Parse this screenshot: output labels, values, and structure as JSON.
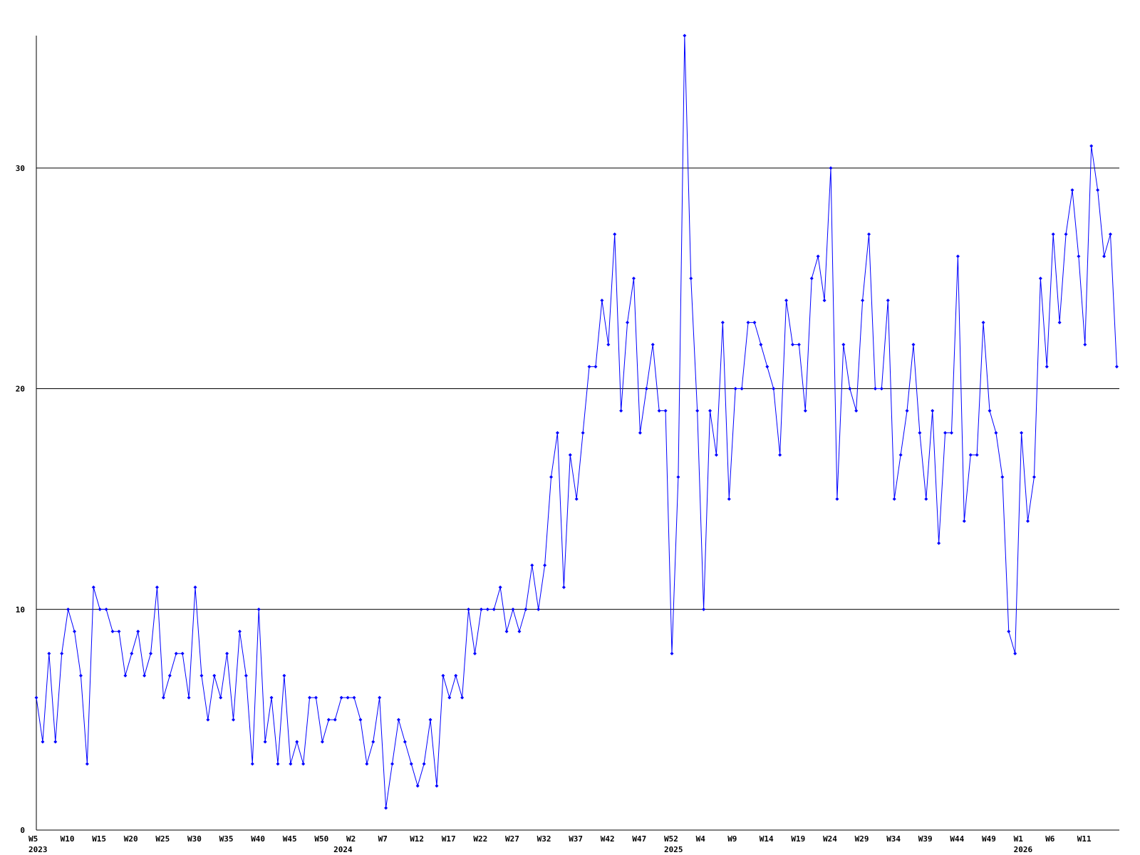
{
  "chart_data": {
    "type": "line",
    "categories": [
      "W5",
      null,
      null,
      null,
      null,
      "W10",
      null,
      null,
      null,
      null,
      "W15",
      null,
      null,
      null,
      null,
      "W20",
      null,
      null,
      null,
      null,
      "W25",
      null,
      null,
      null,
      null,
      "W30",
      null,
      null,
      null,
      null,
      "W35",
      null,
      null,
      null,
      null,
      "W40",
      null,
      null,
      null,
      null,
      "W45",
      null,
      null,
      null,
      null,
      "W50",
      null,
      null,
      null,
      null,
      "W2",
      null,
      null,
      null,
      null,
      "W7",
      null,
      null,
      null,
      null,
      "W12",
      null,
      null,
      null,
      null,
      "W17",
      null,
      null,
      null,
      null,
      "W22",
      null,
      null,
      null,
      null,
      "W27",
      null,
      null,
      null,
      null,
      "W32",
      null,
      null,
      null,
      null,
      "W37",
      null,
      null,
      null,
      null,
      "W42",
      null,
      null,
      null,
      null,
      "W47",
      null,
      null,
      null,
      null,
      "W52",
      null,
      null,
      null,
      null,
      "W4",
      null,
      null,
      null,
      null,
      "W9",
      null,
      null,
      null,
      null,
      "W14",
      null,
      null,
      null,
      null,
      "W19",
      null,
      null,
      null,
      null,
      "W24",
      null,
      null,
      null,
      null,
      "W29",
      null,
      null,
      null,
      null,
      "W34",
      null,
      null,
      null,
      null,
      "W39",
      null,
      null,
      null,
      null,
      "W44",
      null,
      null,
      null,
      null,
      "W49",
      null,
      null,
      null,
      null,
      "W1",
      null,
      null,
      null,
      null,
      "W6",
      null,
      null,
      null,
      null,
      "W11",
      null,
      null,
      null,
      null,
      null
    ],
    "years": [
      "2023",
      null,
      null,
      null,
      null,
      null,
      null,
      null,
      null,
      null,
      null,
      null,
      null,
      null,
      null,
      null,
      null,
      null,
      null,
      null,
      null,
      null,
      null,
      null,
      null,
      null,
      null,
      null,
      null,
      null,
      null,
      null,
      null,
      null,
      null,
      null,
      null,
      null,
      null,
      null,
      null,
      null,
      null,
      null,
      null,
      null,
      null,
      null,
      "2024",
      null,
      null,
      null,
      null,
      null,
      null,
      null,
      null,
      null,
      null,
      null,
      null,
      null,
      null,
      null,
      null,
      null,
      null,
      null,
      null,
      null,
      null,
      null,
      null,
      null,
      null,
      null,
      null,
      null,
      null,
      null,
      null,
      null,
      null,
      null,
      null,
      null,
      null,
      null,
      null,
      null,
      null,
      null,
      null,
      null,
      null,
      null,
      null,
      null,
      null,
      null,
      "2025",
      null,
      null,
      null,
      null,
      null,
      null,
      null,
      null,
      null,
      null,
      null,
      null,
      null,
      null,
      null,
      null,
      null,
      null,
      null,
      null,
      null,
      null,
      null,
      null,
      null,
      null,
      null,
      null,
      null,
      null,
      null,
      null,
      null,
      null,
      null,
      null,
      null,
      null,
      null,
      null,
      null,
      null,
      null,
      null,
      null,
      null,
      null,
      null,
      null,
      null,
      null,
      null,
      null,
      null,
      "2026",
      null,
      null,
      null,
      null,
      null,
      null,
      null,
      null,
      null,
      null,
      null,
      null,
      null,
      null,
      null,
      null
    ],
    "values": [
      6,
      4,
      8,
      4,
      8,
      10,
      9,
      7,
      3,
      11,
      10,
      10,
      9,
      9,
      7,
      8,
      9,
      7,
      8,
      11,
      6,
      7,
      8,
      8,
      6,
      11,
      7,
      5,
      7,
      6,
      8,
      5,
      9,
      7,
      3,
      10,
      4,
      6,
      3,
      7,
      3,
      4,
      3,
      6,
      6,
      4,
      5,
      5,
      6,
      6,
      6,
      5,
      3,
      4,
      6,
      1,
      3,
      5,
      4,
      3,
      2,
      3,
      5,
      2,
      7,
      6,
      7,
      6,
      10,
      8,
      10,
      10,
      10,
      11,
      9,
      10,
      9,
      10,
      12,
      10,
      12,
      16,
      18,
      11,
      17,
      15,
      18,
      21,
      21,
      24,
      22,
      27,
      19,
      23,
      25,
      18,
      20,
      22,
      19,
      19,
      8,
      16,
      36,
      25,
      19,
      10,
      19,
      17,
      23,
      15,
      20,
      20,
      23,
      23,
      22,
      21,
      20,
      17,
      24,
      22,
      22,
      19,
      25,
      26,
      24,
      30,
      15,
      22,
      20,
      19,
      24,
      27,
      20,
      20,
      24,
      15,
      17,
      19,
      22,
      18,
      15,
      19,
      13,
      18,
      18,
      26,
      14,
      17,
      17,
      23,
      19,
      18,
      16,
      9,
      8,
      18,
      14,
      16,
      25,
      21,
      27,
      23,
      27,
      29,
      26,
      22,
      31,
      29,
      26,
      27,
      21
    ],
    "color": "#0000ff",
    "grid_color": "#000000",
    "ylim": [
      0,
      36
    ],
    "yticks": [
      0,
      10,
      20,
      30
    ],
    "grid": true
  }
}
